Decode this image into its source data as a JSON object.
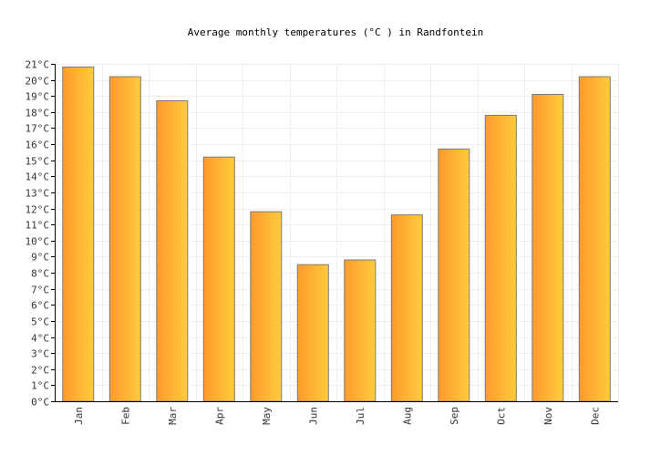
{
  "chart_data": {
    "type": "bar",
    "title": "Average monthly temperatures (°C ) in Randfontein",
    "categories": [
      "Jan",
      "Feb",
      "Mar",
      "Apr",
      "May",
      "Jun",
      "Jul",
      "Aug",
      "Sep",
      "Oct",
      "Nov",
      "Dec"
    ],
    "values": [
      20.8,
      20.2,
      18.7,
      15.2,
      11.8,
      8.5,
      8.8,
      11.6,
      15.7,
      17.8,
      19.1,
      20.2
    ],
    "ylim": [
      0,
      21
    ],
    "yticks": [
      "0°C",
      "1°C",
      "2°C",
      "3°C",
      "4°C",
      "5°C",
      "6°C",
      "7°C",
      "8°C",
      "9°C",
      "10°C",
      "11°C",
      "12°C",
      "13°C",
      "14°C",
      "15°C",
      "16°C",
      "17°C",
      "18°C",
      "19°C",
      "20°C",
      "21°C"
    ],
    "grid": true,
    "colors": {
      "bar_start": "#ff9a2e",
      "bar_end": "#ffcb3a",
      "bar_stroke": "#7a7a7a",
      "grid": "#eeeeee",
      "axis": "#000000"
    }
  }
}
